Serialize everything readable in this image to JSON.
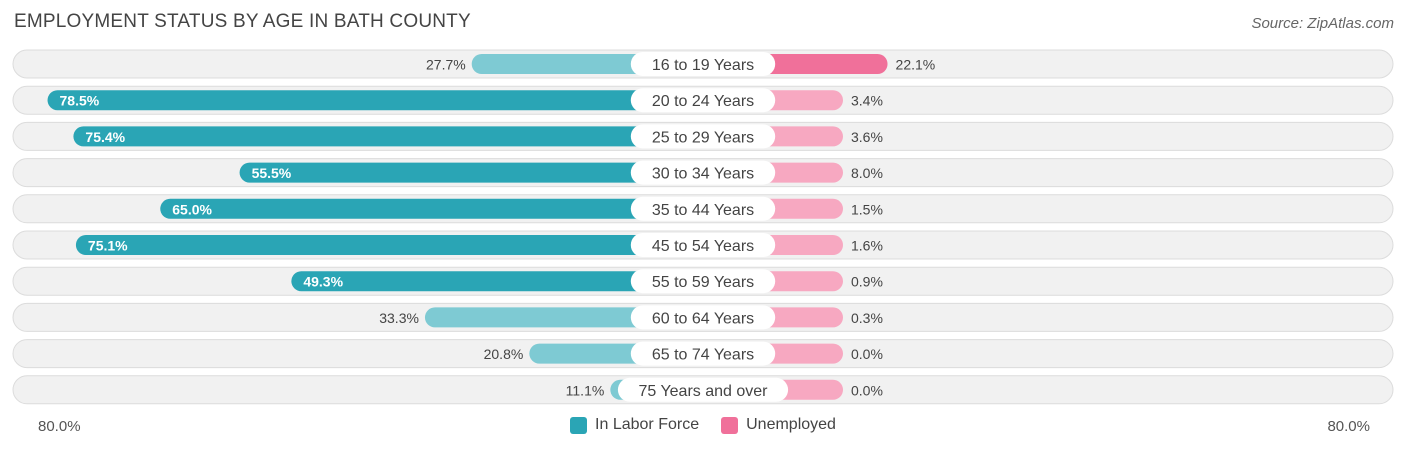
{
  "title": "EMPLOYMENT STATUS BY AGE IN BATH COUNTY",
  "source": "Source: ZipAtlas.com",
  "axis": {
    "left_label": "80.0%",
    "right_label": "80.0%"
  },
  "legend": [
    {
      "label": "In Labor Force",
      "color": "#2aa5b5"
    },
    {
      "label": "Unemployed",
      "color": "#f0709a"
    }
  ],
  "colors": {
    "labor_dark": "#2aa5b5",
    "labor_light": "#7ecad3",
    "unemp_dark": "#f0709a",
    "unemp_light": "#f7a8c1",
    "row_bg": "#f1f1f1",
    "row_border": "#dcdcdc"
  },
  "chart_data": {
    "type": "bar",
    "orientation": "diverging-horizontal",
    "title": "EMPLOYMENT STATUS BY AGE IN BATH COUNTY",
    "xlim": [
      -80,
      80
    ],
    "categories": [
      "16 to 19 Years",
      "20 to 24 Years",
      "25 to 29 Years",
      "30 to 34 Years",
      "35 to 44 Years",
      "45 to 54 Years",
      "55 to 59 Years",
      "60 to 64 Years",
      "65 to 74 Years",
      "75 Years and over"
    ],
    "series": [
      {
        "name": "In Labor Force",
        "values": [
          27.7,
          78.5,
          75.4,
          55.5,
          65.0,
          75.1,
          49.3,
          33.3,
          20.8,
          11.1
        ],
        "labels": [
          "27.7%",
          "78.5%",
          "75.4%",
          "55.5%",
          "65.0%",
          "75.1%",
          "49.3%",
          "33.3%",
          "20.8%",
          "11.1%"
        ]
      },
      {
        "name": "Unemployed",
        "values": [
          22.1,
          3.4,
          3.6,
          8.0,
          1.5,
          1.6,
          0.9,
          0.3,
          0.0,
          0.0
        ],
        "labels": [
          "22.1%",
          "3.4%",
          "3.6%",
          "8.0%",
          "1.5%",
          "1.6%",
          "0.9%",
          "0.3%",
          "0.0%",
          "0.0%"
        ]
      }
    ]
  }
}
